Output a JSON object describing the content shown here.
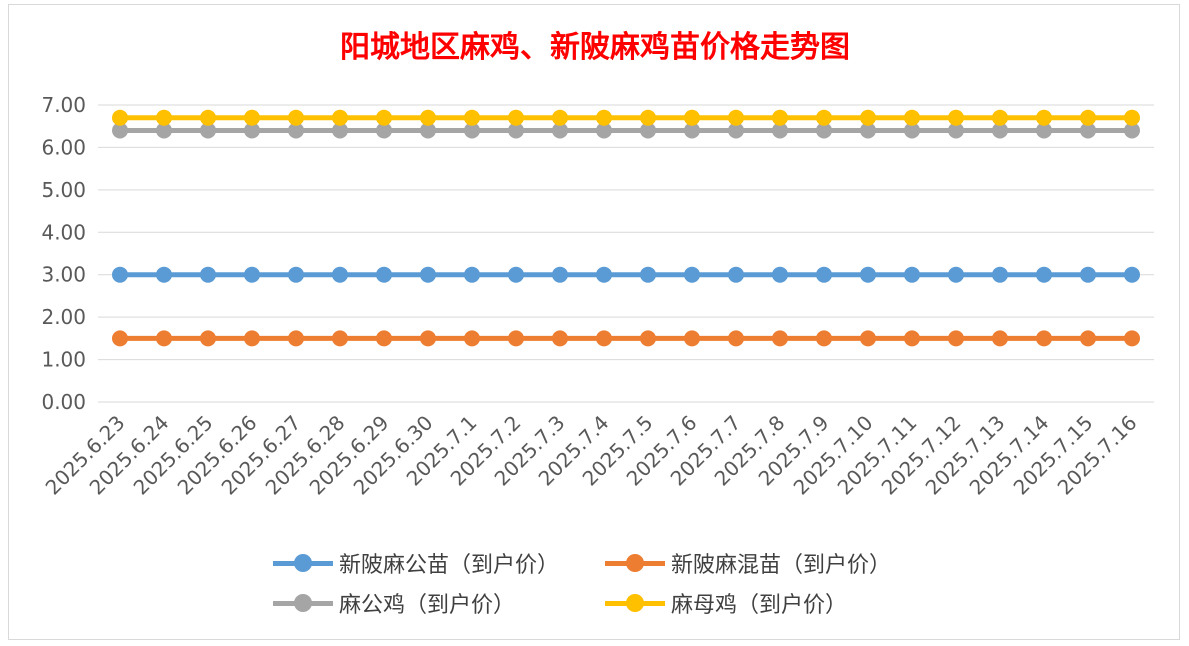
{
  "chart_data": {
    "type": "line",
    "title": "阳城地区麻鸡、新陂麻鸡苗价格走势图",
    "categories": [
      "2025.6.23",
      "2025.6.24",
      "2025.6.25",
      "2025.6.26",
      "2025.6.27",
      "2025.6.28",
      "2025.6.29",
      "2025.6.30",
      "2025.7.1",
      "2025.7.2",
      "2025.7.3",
      "2025.7.4",
      "2025.7.5",
      "2025.7.6",
      "2025.7.7",
      "2025.7.8",
      "2025.7.9",
      "2025.7.10",
      "2025.7.11",
      "2025.7.12",
      "2025.7.13",
      "2025.7.14",
      "2025.7.15",
      "2025.7.16"
    ],
    "y_ticks": [
      "0.00",
      "1.00",
      "2.00",
      "3.00",
      "4.00",
      "5.00",
      "6.00",
      "7.00"
    ],
    "ylim": [
      0,
      7
    ],
    "grid": true,
    "legend_position": "bottom",
    "series": [
      {
        "name": "新陂麻公苗（到户价）",
        "color": "#5b9bd5",
        "values": [
          3,
          3,
          3,
          3,
          3,
          3,
          3,
          3,
          3,
          3,
          3,
          3,
          3,
          3,
          3,
          3,
          3,
          3,
          3,
          3,
          3,
          3,
          3,
          3
        ]
      },
      {
        "name": "新陂麻混苗（到户价）",
        "color": "#ed7d31",
        "values": [
          1.5,
          1.5,
          1.5,
          1.5,
          1.5,
          1.5,
          1.5,
          1.5,
          1.5,
          1.5,
          1.5,
          1.5,
          1.5,
          1.5,
          1.5,
          1.5,
          1.5,
          1.5,
          1.5,
          1.5,
          1.5,
          1.5,
          1.5,
          1.5
        ]
      },
      {
        "name": "麻公鸡（到户价）",
        "color": "#a5a5a5",
        "values": [
          6.4,
          6.4,
          6.4,
          6.4,
          6.4,
          6.4,
          6.4,
          6.4,
          6.4,
          6.4,
          6.4,
          6.4,
          6.4,
          6.4,
          6.4,
          6.4,
          6.4,
          6.4,
          6.4,
          6.4,
          6.4,
          6.4,
          6.4,
          6.4
        ]
      },
      {
        "name": "麻母鸡（到户价）",
        "color": "#ffc000",
        "values": [
          6.7,
          6.7,
          6.7,
          6.7,
          6.7,
          6.7,
          6.7,
          6.7,
          6.7,
          6.7,
          6.7,
          6.7,
          6.7,
          6.7,
          6.7,
          6.7,
          6.7,
          6.7,
          6.7,
          6.7,
          6.7,
          6.7,
          6.7,
          6.7
        ]
      }
    ]
  }
}
